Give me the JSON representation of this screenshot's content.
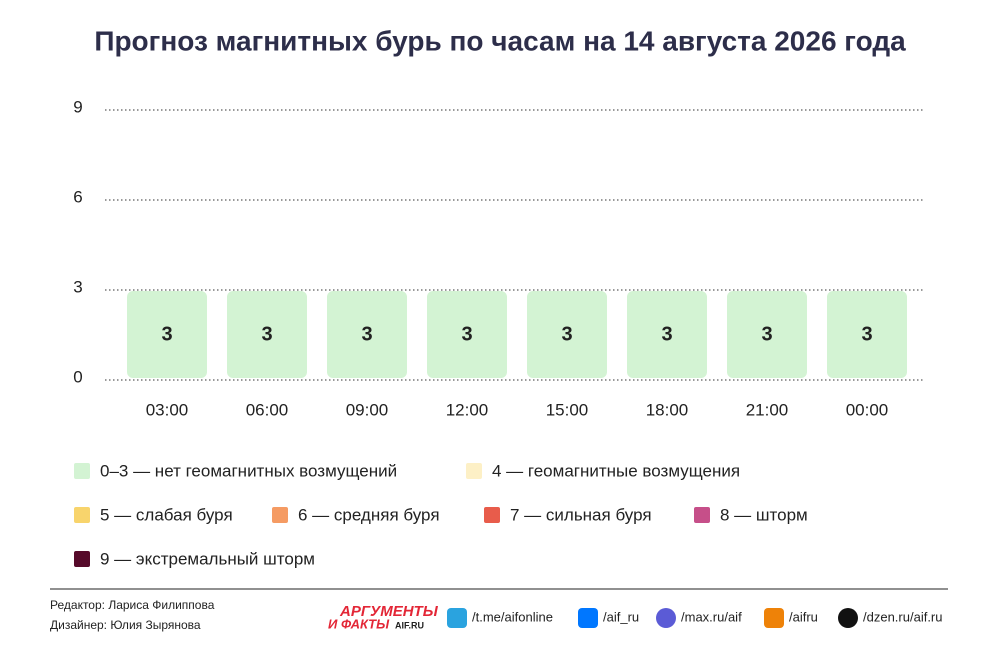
{
  "chart_data": {
    "type": "bar",
    "title": "Прогноз магнитных бурь по часам на 14 августа 2026 года",
    "categories": [
      "03:00",
      "06:00",
      "09:00",
      "12:00",
      "15:00",
      "18:00",
      "21:00",
      "00:00"
    ],
    "values": [
      3,
      3,
      3,
      3,
      3,
      3,
      3,
      3
    ],
    "color": "#d3f3d3",
    "ylim": [
      0,
      9
    ],
    "yticks": [
      0,
      3,
      6,
      9
    ],
    "grid": true
  },
  "legend": [
    {
      "label": "0–3 — нет геомагнитных возмущений",
      "color": "#d3f3d3"
    },
    {
      "label": "4 — геомагнитные возмущения",
      "color": "#fdf0c6"
    },
    {
      "label": "5 — слабая буря",
      "color": "#f8d46c"
    },
    {
      "label": "6 — средняя буря",
      "color": "#f59b63"
    },
    {
      "label": "7 — сильная буря",
      "color": "#e85c4b"
    },
    {
      "label": "8 — шторм",
      "color": "#c64f89"
    },
    {
      "label": "9 — экстремальный шторм",
      "color": "#560a2a"
    }
  ],
  "footer": {
    "credits": [
      "Редактор: Лариса Филиппова",
      "Дизайнер: Юлия Зырянова"
    ],
    "logo": [
      "АРГУМЕНТЫ",
      "И ФАКТЫ",
      "AIF.RU"
    ],
    "links": [
      "/t.me/aifonline",
      "/aif_ru",
      "/max.ru/aif",
      "/aifru",
      "/dzen.ru/aif.ru"
    ]
  }
}
